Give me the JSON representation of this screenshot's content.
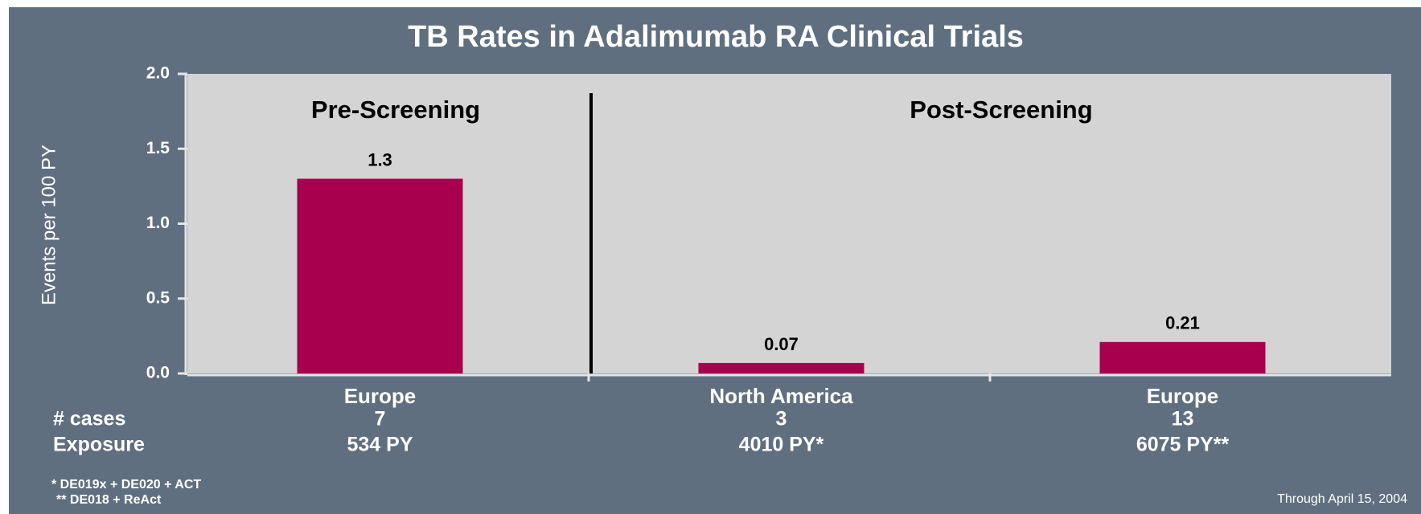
{
  "chart_data": {
    "type": "bar",
    "title": "TB Rates in Adalimumab RA Clinical Trials",
    "ylabel": "Events per 100 PY",
    "categories": [
      "Europe",
      "North America",
      "Europe"
    ],
    "values": [
      1.3,
      0.07,
      0.21
    ],
    "color": "#a8004f",
    "ylim": [
      0,
      2
    ],
    "yticks": [
      {
        "value": 0,
        "label": "0.0"
      },
      {
        "value": 0.5,
        "label": "0.5"
      },
      {
        "value": 1,
        "label": "1.0"
      },
      {
        "value": 1.5,
        "label": "1.5"
      },
      {
        "value": 2,
        "label": "2.0"
      }
    ],
    "sections": [
      "Pre-Screening",
      "Post-Screening"
    ],
    "rows": [
      {
        "label": "# cases",
        "values": [
          7,
          3,
          13
        ]
      },
      {
        "label": "Exposure",
        "values": [
          "534 PY",
          "4010 PY*",
          "6075 PY**"
        ]
      }
    ],
    "footnotes": [
      "* DE019x + DE020 + ACT",
      "** DE018 + ReAct"
    ],
    "note": "Through April 15, 2004"
  }
}
